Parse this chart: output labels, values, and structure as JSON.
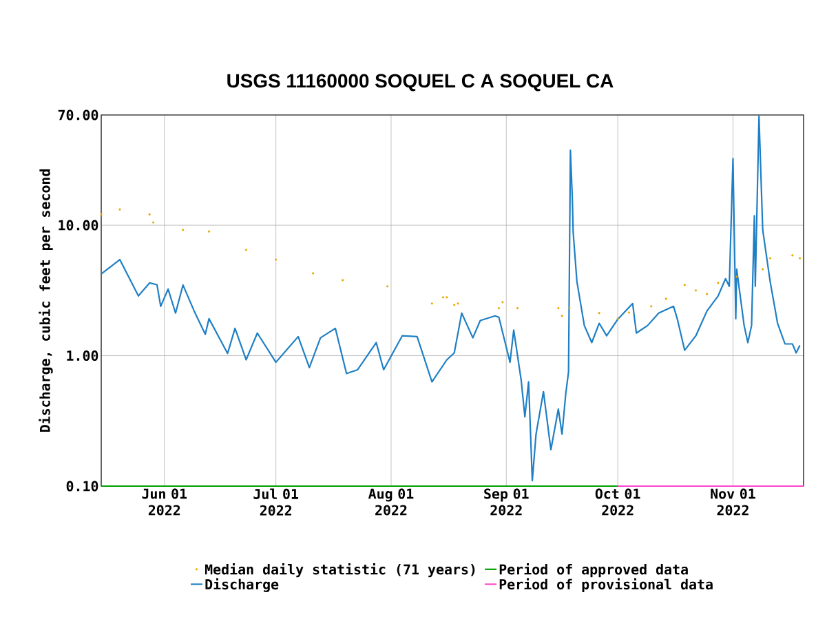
{
  "chart_data": {
    "type": "line",
    "title": "USGS 11160000 SOQUEL C A SOQUEL CA",
    "ylabel": "Discharge, cubic feet per second",
    "log": "y",
    "grid": true,
    "legend": "bottom",
    "xlim": [
      "2022-05-15",
      "2022-11-20"
    ],
    "xticks": [
      {
        "value": "2022-06-01",
        "label": "Jun 01 2022"
      },
      {
        "value": "2022-07-01",
        "label": "Jul 01 2022"
      },
      {
        "value": "2022-08-01",
        "label": "Aug 01 2022"
      },
      {
        "value": "2022-09-01",
        "label": "Sep 01 2022"
      },
      {
        "value": "2022-10-01",
        "label": "Oct 01 2022"
      },
      {
        "value": "2022-11-01",
        "label": "Nov 01 2022"
      }
    ],
    "ylim": [
      0.1,
      70
    ],
    "yticks": [
      {
        "value": 0.1,
        "label": "0.10"
      },
      {
        "value": 1,
        "label": "1.00"
      },
      {
        "value": 10,
        "label": "10.00"
      },
      {
        "value": 70,
        "label": "70.00"
      }
    ],
    "series": [
      {
        "name": "Median daily statistic (71 years)",
        "type": "scatter",
        "marker": "circle",
        "color": "#e8a800",
        "x": [
          "2022-05-15",
          "2022-05-20",
          "2022-05-28",
          "2022-05-29",
          "2022-06-06",
          "2022-06-13",
          "2022-06-23",
          "2022-07-01",
          "2022-07-11",
          "2022-07-19",
          "2022-07-31",
          "2022-08-12",
          "2022-08-15",
          "2022-08-16",
          "2022-08-18",
          "2022-08-19",
          "2022-08-30",
          "2022-08-31",
          "2022-09-04",
          "2022-09-15",
          "2022-09-16",
          "2022-09-18",
          "2022-09-26",
          "2022-10-01",
          "2022-10-04",
          "2022-10-10",
          "2022-10-14",
          "2022-10-19",
          "2022-10-22",
          "2022-10-25",
          "2022-10-28",
          "2022-11-02",
          "2022-11-09",
          "2022-11-11",
          "2022-11-17",
          "2022-11-19"
        ],
        "values": [
          12.1,
          13.2,
          12.1,
          10.5,
          9.2,
          8.95,
          6.47,
          5.45,
          4.28,
          3.79,
          3.4,
          2.51,
          2.8,
          2.8,
          2.45,
          2.51,
          2.31,
          2.57,
          2.31,
          2.31,
          2.02,
          2.31,
          2.12,
          1.92,
          2.14,
          2.39,
          2.73,
          3.48,
          3.16,
          2.97,
          3.61,
          4.03,
          4.6,
          5.58,
          5.87,
          5.58
        ]
      },
      {
        "name": "Discharge",
        "type": "line",
        "marker": "none",
        "color": "#1f7fc4",
        "x": [
          "2022-05-15",
          "2022-05-20",
          "2022-05-25",
          "2022-05-28",
          "2022-05-30",
          "2022-05-31",
          "2022-06-02",
          "2022-06-04",
          "2022-06-06",
          "2022-06-09",
          "2022-06-12",
          "2022-06-13",
          "2022-06-18",
          "2022-06-20",
          "2022-06-23",
          "2022-06-26",
          "2022-07-01",
          "2022-07-07",
          "2022-07-10",
          "2022-07-13",
          "2022-07-17",
          "2022-07-20",
          "2022-07-23",
          "2022-07-28",
          "2022-07-30",
          "2022-08-04",
          "2022-08-08",
          "2022-08-12",
          "2022-08-16",
          "2022-08-18",
          "2022-08-20",
          "2022-08-23",
          "2022-08-25",
          "2022-08-29",
          "2022-08-30",
          "2022-09-02",
          "2022-09-03",
          "2022-09-05",
          "2022-09-06",
          "2022-09-07",
          "2022-09-08",
          "2022-09-09",
          "2022-09-11",
          "2022-09-13",
          "2022-09-15",
          "2022-09-16",
          "2022-09-17",
          "2022-09-17T18:00",
          "2022-09-18T06:00",
          "2022-09-18T18:00",
          "2022-09-19",
          "2022-09-20",
          "2022-09-22",
          "2022-09-24",
          "2022-09-26",
          "2022-09-28",
          "2022-10-01",
          "2022-10-05",
          "2022-10-06",
          "2022-10-09",
          "2022-10-12",
          "2022-10-16",
          "2022-10-17",
          "2022-10-19",
          "2022-10-22",
          "2022-10-25",
          "2022-10-28",
          "2022-10-30",
          "2022-10-31",
          "2022-11-01",
          "2022-11-01T18:00",
          "2022-11-02",
          "2022-11-04",
          "2022-11-05",
          "2022-11-06",
          "2022-11-06T18:00",
          "2022-11-07",
          "2022-11-08",
          "2022-11-09",
          "2022-11-11",
          "2022-11-13",
          "2022-11-15",
          "2022-11-17",
          "2022-11-18",
          "2022-11-19"
        ],
        "values": [
          4.23,
          5.45,
          2.87,
          3.61,
          3.5,
          2.39,
          3.24,
          2.12,
          3.48,
          2.2,
          1.46,
          1.92,
          1.04,
          1.62,
          0.93,
          1.49,
          0.89,
          1.4,
          0.81,
          1.37,
          1.62,
          0.73,
          0.78,
          1.26,
          0.78,
          1.42,
          1.4,
          0.63,
          0.93,
          1.05,
          2.12,
          1.37,
          1.86,
          2.02,
          1.97,
          0.89,
          1.57,
          0.65,
          0.34,
          0.63,
          0.11,
          0.25,
          0.53,
          0.19,
          0.39,
          0.25,
          0.51,
          0.75,
          37.5,
          16.8,
          8.8,
          3.7,
          1.7,
          1.26,
          1.77,
          1.42,
          1.9,
          2.51,
          1.49,
          1.7,
          2.12,
          2.39,
          1.92,
          1.1,
          1.42,
          2.2,
          2.87,
          3.89,
          3.4,
          32.4,
          1.92,
          4.6,
          1.7,
          1.26,
          1.7,
          11.8,
          3.4,
          68.5,
          9.2,
          3.7,
          1.77,
          1.23,
          1.23,
          1.05,
          1.2
        ]
      },
      {
        "name": "Period of approved data",
        "color": "#00a000",
        "x": [
          "2022-05-15",
          "2022-10-01"
        ],
        "values": [
          0.1,
          0.1
        ]
      },
      {
        "name": "Period of provisional data",
        "color": "#ff44cc",
        "x": [
          "2022-10-01",
          "2022-11-20"
        ],
        "values": [
          0.1,
          0.1
        ]
      }
    ]
  }
}
